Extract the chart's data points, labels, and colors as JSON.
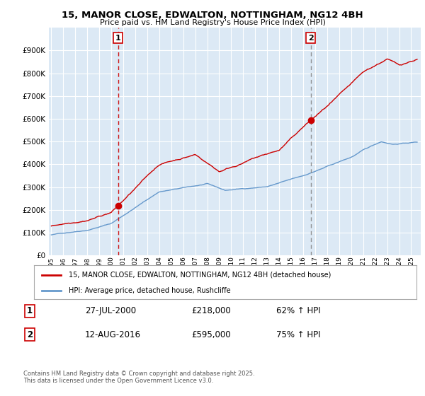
{
  "title": "15, MANOR CLOSE, EDWALTON, NOTTINGHAM, NG12 4BH",
  "subtitle": "Price paid vs. HM Land Registry's House Price Index (HPI)",
  "bg_color": "#ffffff",
  "plot_bg_color": "#dce9f5",
  "grid_color": "#ffffff",
  "red_color": "#cc0000",
  "blue_color": "#6699cc",
  "vline1_color": "#cc0000",
  "vline2_color": "#888888",
  "legend_label_red": "15, MANOR CLOSE, EDWALTON, NOTTINGHAM, NG12 4BH (detached house)",
  "legend_label_blue": "HPI: Average price, detached house, Rushcliffe",
  "transaction1_date": "27-JUL-2000",
  "transaction1_price": "£218,000",
  "transaction1_hpi": "62% ↑ HPI",
  "transaction1_year": 2000.57,
  "transaction1_value": 218000,
  "transaction2_date": "12-AUG-2016",
  "transaction2_price": "£595,000",
  "transaction2_hpi": "75% ↑ HPI",
  "transaction2_year": 2016.62,
  "transaction2_value": 595000,
  "copyright_text": "Contains HM Land Registry data © Crown copyright and database right 2025.\nThis data is licensed under the Open Government Licence v3.0.",
  "ylim": [
    0,
    1000000
  ],
  "yticks": [
    0,
    100000,
    200000,
    300000,
    400000,
    500000,
    600000,
    700000,
    800000,
    900000
  ],
  "xmin": 1994.8,
  "xmax": 2025.8
}
